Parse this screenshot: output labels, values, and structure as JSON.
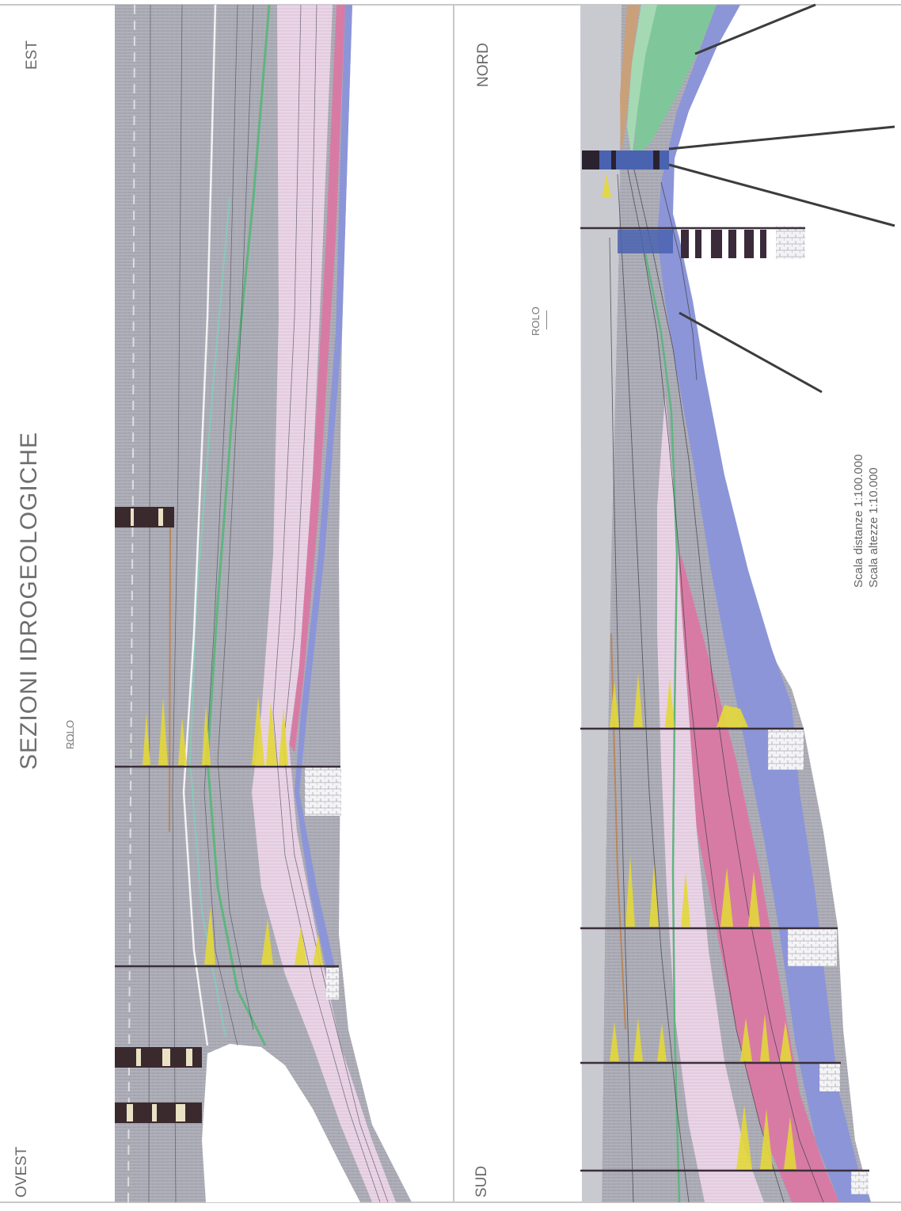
{
  "title": "SEZIONI IDROGEOLOGICHE",
  "section1": {
    "left": "OVEST",
    "right": "EST",
    "rolo": "ROLO"
  },
  "section2": {
    "left": "SUD",
    "right": "NORD",
    "rolo": "ROLO"
  },
  "scale": {
    "distances": "Scala distanze 1:100.000",
    "heights": "Scala altezze 1:10.000"
  },
  "colors": {
    "grey": "#a9a9b4",
    "darkgrey": "#8f8f9a",
    "pink": "#e7cbe0",
    "magenta": "#d77ba5",
    "blue": "#8c95d8",
    "green": "#7fc79a",
    "tan": "#c9a07a",
    "yellow": "#e8dc3a",
    "frame": "#c8c8c8"
  }
}
